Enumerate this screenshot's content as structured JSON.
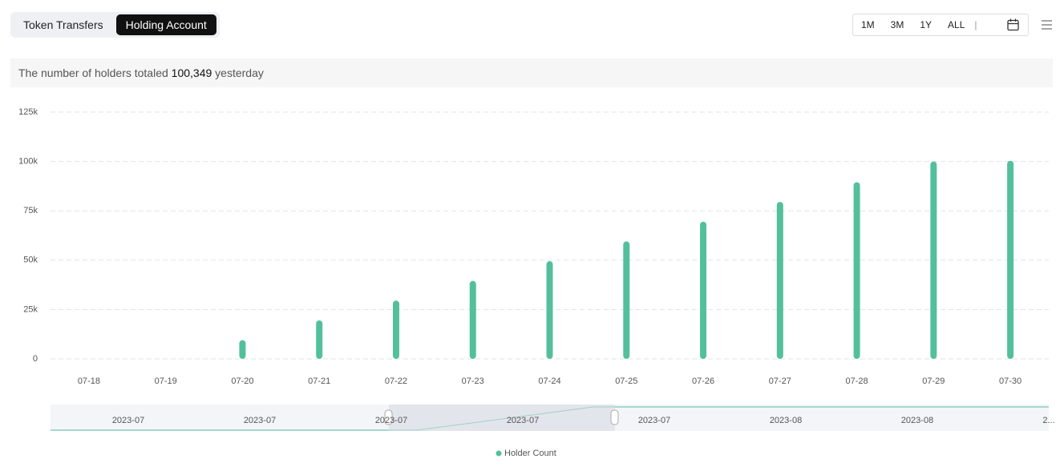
{
  "tabs": [
    "Token Transfers",
    "Holding Account"
  ],
  "range_buttons": [
    "1M",
    "3M",
    "1Y",
    "ALL"
  ],
  "summary": {
    "prefix": "The number of holders totaled",
    "value": "100,349",
    "suffix": "yesterday"
  },
  "chart_data": {
    "type": "bar",
    "categories": [
      "07-18",
      "07-19",
      "07-20",
      "07-21",
      "07-22",
      "07-23",
      "07-24",
      "07-25",
      "07-26",
      "07-27",
      "07-28",
      "07-29",
      "07-30"
    ],
    "series": [
      {
        "name": "Holder Count",
        "color": "#52c09b",
        "values": [
          0,
          0,
          9500,
          19500,
          29500,
          39500,
          49500,
          59500,
          69500,
          79500,
          89500,
          100000,
          100349
        ]
      }
    ],
    "ylim": [
      0,
      125000
    ],
    "yticks": [
      0,
      {
        "value": 25000,
        "label": "25k"
      },
      {
        "value": 50000,
        "label": "50k"
      },
      {
        "value": 75000,
        "label": "75k"
      },
      {
        "value": 100000,
        "label": "100k"
      },
      {
        "value": 125000,
        "label": "125k"
      }
    ],
    "grid": true,
    "legend": "bottom",
    "zoom_labels": [
      "2023-07",
      "2023-07",
      "2023-07",
      "2023-07",
      "2023-07",
      "2023-08",
      "2023-08",
      "2..."
    ]
  }
}
